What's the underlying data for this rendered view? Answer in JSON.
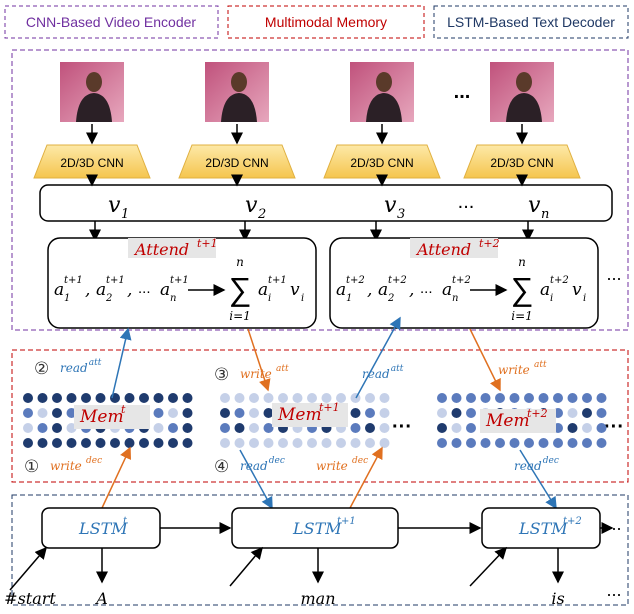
{
  "legend": {
    "video_encoder": "CNN-Based Video Encoder",
    "memory": "Multimodal Memory",
    "text_decoder": "LSTM-Based Text Decoder"
  },
  "encoder": {
    "cnn_labels": [
      "2D/3D CNN",
      "2D/3D CNN",
      "2D/3D CNN",
      "2D/3D CNN"
    ],
    "frame_ellipsis": "...",
    "features": [
      {
        "base": "v",
        "sub": "1"
      },
      {
        "base": "v",
        "sub": "2"
      },
      {
        "base": "v",
        "sub": "3"
      },
      {
        "base": "v",
        "sub": "n"
      }
    ],
    "feature_ellipsis": "..."
  },
  "attention": {
    "blocks": [
      {
        "title": "Attend",
        "step": "t+1"
      },
      {
        "title": "Attend",
        "step": "t+2"
      }
    ],
    "weight": "a",
    "weight_subs": [
      "1",
      "2",
      "n"
    ],
    "separator": ",",
    "ellipsis": "...",
    "sum_symbol": "∑",
    "sum_lower": "i=1",
    "sum_upper": "n",
    "index": "i",
    "vector": "v",
    "more": "..."
  },
  "memory": {
    "blocks": [
      {
        "label": "Mem",
        "step": "t"
      },
      {
        "label": "Mem",
        "step": "t+1"
      },
      {
        "label": "Mem",
        "step": "t+2"
      }
    ],
    "ellipsis": "···",
    "operations": [
      {
        "marker": "②",
        "name": "read",
        "mode": "att"
      },
      {
        "marker": "③",
        "name": "write",
        "mode": "att"
      },
      {
        "name": "read",
        "mode": "att"
      },
      {
        "name": "write",
        "mode": "att"
      },
      {
        "marker": "①",
        "name": "write",
        "mode": "dec"
      },
      {
        "marker": "④",
        "name": "read",
        "mode": "dec"
      },
      {
        "name": "write",
        "mode": "dec"
      },
      {
        "name": "read",
        "mode": "dec"
      }
    ]
  },
  "decoder": {
    "cells": [
      {
        "label": "LSTM",
        "step": "t"
      },
      {
        "label": "LSTM",
        "step": "t+1"
      },
      {
        "label": "LSTM",
        "step": "t+2"
      }
    ],
    "ellipsis": "...",
    "words": [
      "#start",
      "A",
      "man",
      "is"
    ]
  }
}
